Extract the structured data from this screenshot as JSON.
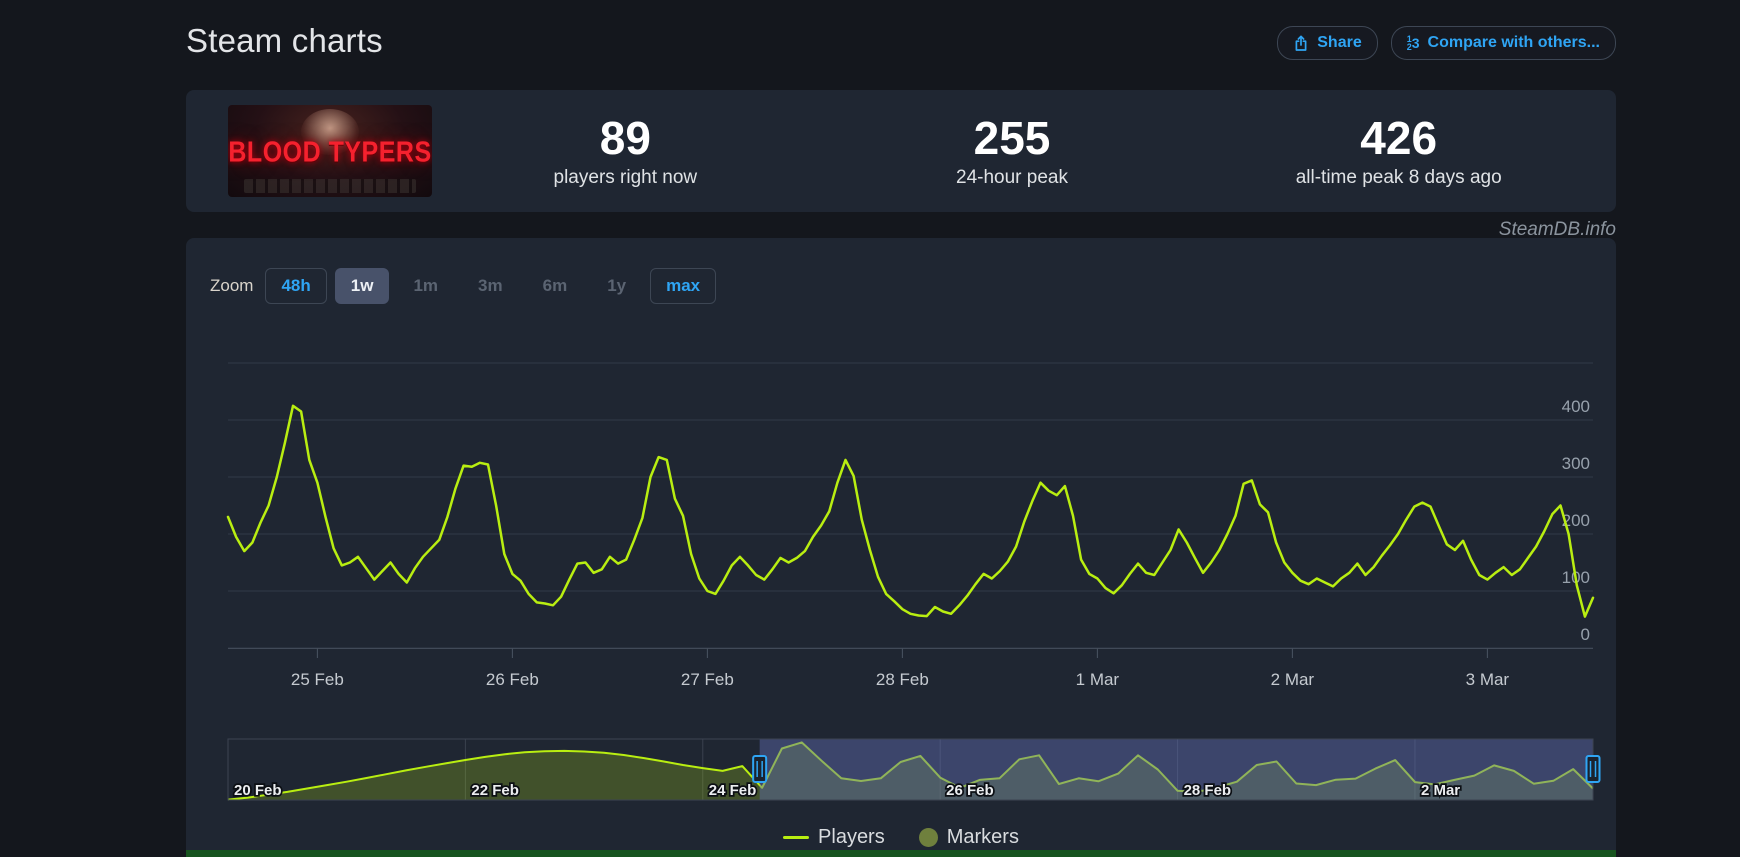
{
  "page": {
    "title": "Steam charts",
    "watermark": "SteamDB.info"
  },
  "header": {
    "share_label": "Share",
    "share_icon": "share-upload-icon",
    "compare_label": "Compare with others...",
    "compare_icon": "compare-123-icon"
  },
  "stats": {
    "game_title": "BLOOD TYPERS",
    "items": [
      {
        "value": "89",
        "label": "players right now"
      },
      {
        "value": "255",
        "label": "24-hour peak"
      },
      {
        "value": "426",
        "label": "all-time peak 8 days ago"
      }
    ]
  },
  "toolbar": {
    "zoom_label": "Zoom",
    "options": [
      {
        "label": "48h",
        "style": "outlined"
      },
      {
        "label": "1w",
        "style": "selected"
      },
      {
        "label": "1m",
        "style": "plain"
      },
      {
        "label": "3m",
        "style": "plain"
      },
      {
        "label": "6m",
        "style": "plain"
      },
      {
        "label": "1y",
        "style": "plain"
      },
      {
        "label": "max",
        "style": "outlined"
      }
    ]
  },
  "legend": [
    {
      "name": "Players",
      "swatch": "line",
      "color": "#b9ee11"
    },
    {
      "name": "Markers",
      "swatch": "circle",
      "color": "#6f803d"
    }
  ],
  "colors": {
    "accent_blue": "#2fa5f4",
    "series": "#b9ee11",
    "grid": "#323b48",
    "axis": "#414a58",
    "y_label": "#97a1ac",
    "x_label": "#c5cad0",
    "nav_fill": "rgba(185,238,17,0.22)",
    "nav_selected_overlay": "rgba(96,108,178,0.45)",
    "nav_border": "#3c4452",
    "handle_stroke": "#2fa5f4"
  },
  "chart_data": {
    "type": "line",
    "title": "Steam charts",
    "ylim": [
      0,
      510
    ],
    "yticks": [
      0,
      100,
      200,
      300,
      400
    ],
    "xticks": [
      "25 Feb",
      "26 Feb",
      "27 Feb",
      "28 Feb",
      "1 Mar",
      "2 Mar",
      "3 Mar"
    ],
    "grid": "horizontal",
    "legend_position": "bottom",
    "series": [
      {
        "name": "Players",
        "color": "#b9ee11",
        "start": "24 Feb 13:00",
        "interval_hours": 1,
        "values": [
          230,
          195,
          170,
          185,
          220,
          250,
          300,
          360,
          425,
          415,
          330,
          290,
          230,
          175,
          145,
          150,
          160,
          140,
          120,
          135,
          150,
          130,
          115,
          140,
          160,
          175,
          190,
          230,
          280,
          320,
          318,
          325,
          322,
          250,
          165,
          130,
          118,
          95,
          80,
          78,
          75,
          90,
          120,
          148,
          150,
          132,
          138,
          160,
          148,
          155,
          190,
          228,
          300,
          335,
          330,
          262,
          232,
          165,
          122,
          100,
          95,
          118,
          145,
          160,
          145,
          128,
          120,
          138,
          158,
          150,
          158,
          170,
          195,
          215,
          240,
          290,
          330,
          302,
          225,
          172,
          125,
          95,
          82,
          68,
          60,
          57,
          56,
          72,
          64,
          60,
          75,
          92,
          112,
          130,
          122,
          135,
          152,
          178,
          222,
          258,
          290,
          276,
          268,
          284,
          232,
          155,
          130,
          122,
          105,
          96,
          110,
          130,
          148,
          132,
          128,
          150,
          172,
          208,
          185,
          158,
          132,
          150,
          172,
          200,
          232,
          288,
          294,
          252,
          238,
          185,
          150,
          132,
          118,
          112,
          122,
          115,
          108,
          122,
          132,
          148,
          128,
          142,
          162,
          180,
          200,
          225,
          248,
          255,
          248,
          215,
          182,
          172,
          188,
          155,
          128,
          120,
          132,
          142,
          128,
          138,
          158,
          178,
          205,
          235,
          250,
          200,
          110,
          55,
          88
        ]
      }
    ],
    "navigator": {
      "range_start": "20 Feb 00:00",
      "range_end": "3 Mar 13:00",
      "interval_hours": 4,
      "selected_from": "24 Feb 12:00",
      "xticks": [
        "20 Feb",
        "22 Feb",
        "24 Feb",
        "26 Feb",
        "28 Feb",
        "2 Mar"
      ],
      "values": [
        3,
        18,
        38,
        60,
        85,
        110,
        135,
        162,
        190,
        218,
        245,
        270,
        295,
        318,
        338,
        352,
        360,
        362,
        358,
        348,
        332,
        310,
        285,
        258,
        235,
        215,
        250,
        90,
        380,
        425,
        290,
        160,
        140,
        160,
        280,
        325,
        165,
        90,
        148,
        160,
        300,
        330,
        118,
        160,
        138,
        195,
        330,
        225,
        68,
        60,
        92,
        135,
        258,
        284,
        122,
        110,
        150,
        158,
        232,
        294,
        132,
        115,
        148,
        180,
        255,
        215,
        120,
        142,
        228,
        85
      ]
    }
  }
}
